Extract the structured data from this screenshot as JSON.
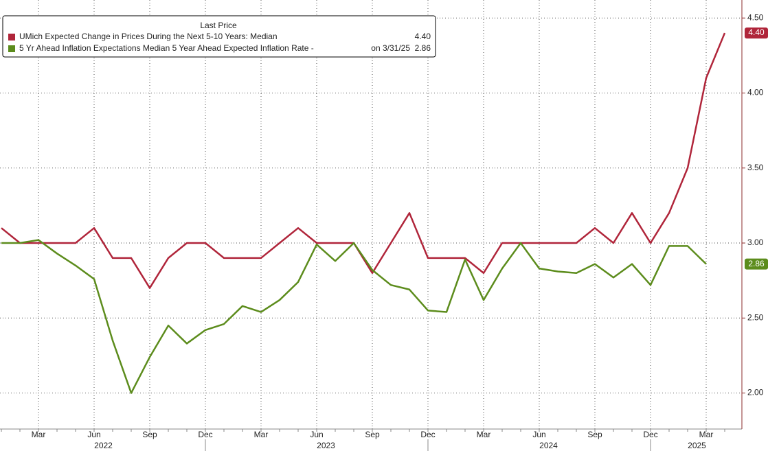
{
  "chart_data": {
    "type": "line",
    "legend_title": "Last Price",
    "categories": [
      null,
      null,
      "Mar",
      null,
      null,
      "Jun",
      null,
      null,
      "Sep",
      null,
      null,
      "Dec",
      null,
      null,
      "Mar",
      null,
      null,
      "Jun",
      null,
      null,
      "Sep",
      null,
      null,
      "Dec",
      null,
      null,
      "Mar",
      null,
      null,
      "Jun",
      null,
      null,
      "Sep",
      null,
      null,
      "Dec",
      null,
      null,
      "Mar",
      null
    ],
    "years": [
      "2022",
      "2023",
      "2024",
      "2025"
    ],
    "series": [
      {
        "name": "UMich Expected Change in Prices During the Next 5-10 Years: Median",
        "color": "#b0253a",
        "last_price": "4.40",
        "values": [
          3.1,
          3.0,
          3.0,
          3.0,
          3.0,
          3.1,
          2.9,
          2.9,
          2.7,
          2.9,
          3.0,
          3.0,
          2.9,
          2.9,
          2.9,
          3.0,
          3.1,
          3.0,
          3.0,
          3.0,
          2.8,
          3.0,
          3.2,
          2.9,
          2.9,
          2.9,
          2.8,
          3.0,
          3.0,
          3.0,
          3.0,
          3.0,
          3.1,
          3.0,
          3.2,
          3.0,
          3.2,
          3.5,
          4.1,
          4.4
        ]
      },
      {
        "name": "5 Yr Ahead Inflation Expectations Median 5 Year Ahead Expected Inflation Rate -",
        "color": "#5c8c1c",
        "last_price_note": "on 3/31/25",
        "last_price": "2.86",
        "values": [
          3.0,
          3.0,
          3.02,
          2.93,
          2.85,
          2.76,
          2.35,
          2.0,
          2.24,
          2.45,
          2.33,
          2.42,
          2.46,
          2.58,
          2.54,
          2.62,
          2.74,
          2.99,
          2.88,
          3.0,
          2.82,
          2.72,
          2.69,
          2.55,
          2.54,
          2.89,
          2.62,
          2.83,
          3.0,
          2.83,
          2.81,
          2.8,
          2.86,
          2.77,
          2.86,
          2.72,
          2.98,
          2.98,
          2.86,
          null
        ]
      }
    ],
    "ylim": [
      1.76,
      4.62
    ],
    "yticks": [
      {
        "value": 2,
        "label": "2.00"
      },
      {
        "value": 2.5,
        "label": "2.50"
      },
      {
        "value": 3,
        "label": "3.00"
      },
      {
        "value": 3.5,
        "label": "3.50"
      },
      {
        "value": 4,
        "label": "4.00"
      },
      {
        "value": 4.5,
        "label": "4.50"
      }
    ],
    "grid": true
  }
}
